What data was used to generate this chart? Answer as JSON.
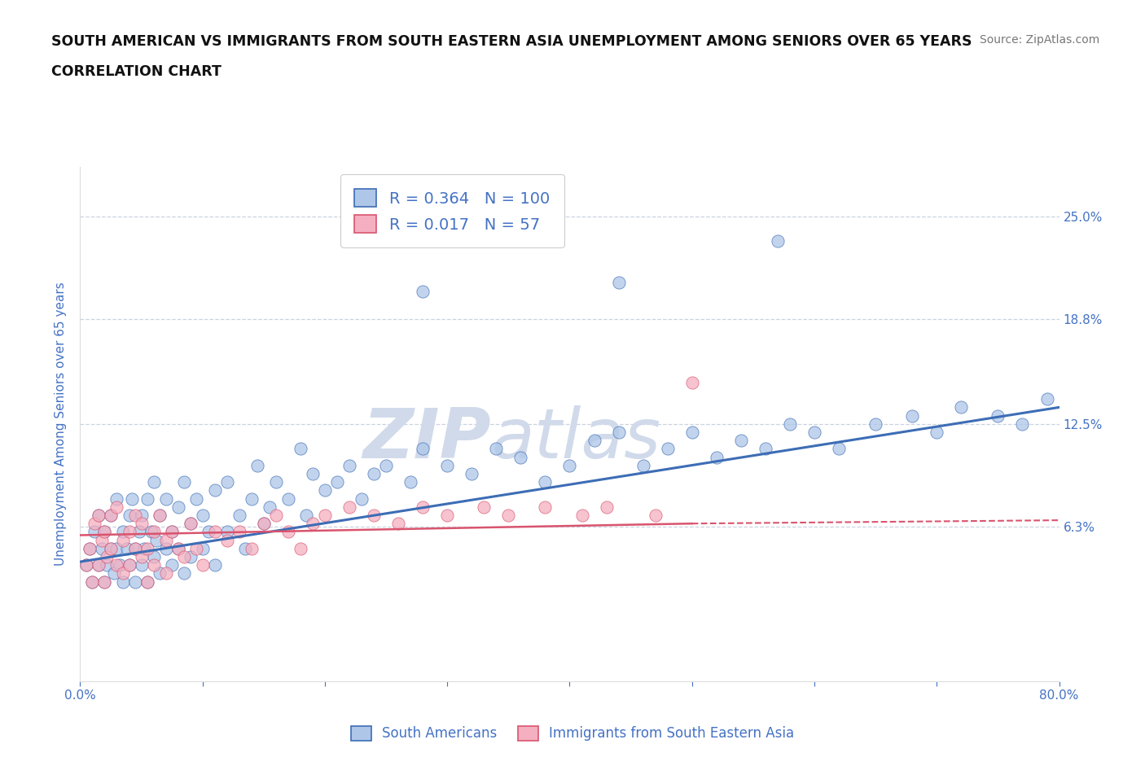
{
  "title_line1": "SOUTH AMERICAN VS IMMIGRANTS FROM SOUTH EASTERN ASIA UNEMPLOYMENT AMONG SENIORS OVER 65 YEARS",
  "title_line2": "CORRELATION CHART",
  "source": "Source: ZipAtlas.com",
  "ylabel": "Unemployment Among Seniors over 65 years",
  "xlim": [
    0.0,
    80.0
  ],
  "ylim": [
    -3.0,
    28.0
  ],
  "yticks": [
    6.3,
    12.5,
    18.8,
    25.0
  ],
  "ytick_labels": [
    "6.3%",
    "12.5%",
    "18.8%",
    "25.0%"
  ],
  "xticks": [
    0.0,
    10.0,
    20.0,
    30.0,
    40.0,
    50.0,
    60.0,
    70.0,
    80.0
  ],
  "blue_R": 0.364,
  "blue_N": 100,
  "pink_R": 0.017,
  "pink_N": 57,
  "blue_color": "#aec6e8",
  "pink_color": "#f4afc0",
  "blue_line_color": "#3d6db5",
  "pink_line_color": "#d9546e",
  "tick_color": "#4472c4",
  "grid_color": "#c0c8d8",
  "watermark_color": "#d0daea",
  "background_color": "#ffffff",
  "blue_scatter_x": [
    0.5,
    0.8,
    1.0,
    1.2,
    1.5,
    1.5,
    1.8,
    2.0,
    2.0,
    2.2,
    2.5,
    2.5,
    2.8,
    3.0,
    3.0,
    3.2,
    3.5,
    3.5,
    3.8,
    4.0,
    4.0,
    4.2,
    4.5,
    4.5,
    4.8,
    5.0,
    5.0,
    5.2,
    5.5,
    5.5,
    5.8,
    6.0,
    6.0,
    6.2,
    6.5,
    6.5,
    7.0,
    7.0,
    7.5,
    7.5,
    8.0,
    8.0,
    8.5,
    8.5,
    9.0,
    9.0,
    9.5,
    10.0,
    10.0,
    10.5,
    11.0,
    11.0,
    12.0,
    12.0,
    13.0,
    13.5,
    14.0,
    14.5,
    15.0,
    15.5,
    16.0,
    17.0,
    18.0,
    18.5,
    19.0,
    20.0,
    21.0,
    22.0,
    23.0,
    24.0,
    25.0,
    27.0,
    28.0,
    30.0,
    32.0,
    34.0,
    36.0,
    38.0,
    40.0,
    42.0,
    44.0,
    46.0,
    48.0,
    50.0,
    52.0,
    54.0,
    56.0,
    58.0,
    60.0,
    62.0,
    65.0,
    68.0,
    70.0,
    72.0,
    75.0,
    77.0,
    79.0,
    28.0,
    44.0,
    57.0
  ],
  "blue_scatter_y": [
    4.0,
    5.0,
    3.0,
    6.0,
    4.0,
    7.0,
    5.0,
    3.0,
    6.0,
    4.0,
    7.0,
    5.0,
    3.5,
    5.0,
    8.0,
    4.0,
    6.0,
    3.0,
    5.0,
    7.0,
    4.0,
    8.0,
    5.0,
    3.0,
    6.0,
    4.0,
    7.0,
    5.0,
    8.0,
    3.0,
    6.0,
    4.5,
    9.0,
    5.5,
    7.0,
    3.5,
    5.0,
    8.0,
    6.0,
    4.0,
    7.5,
    5.0,
    9.0,
    3.5,
    6.5,
    4.5,
    8.0,
    5.0,
    7.0,
    6.0,
    8.5,
    4.0,
    6.0,
    9.0,
    7.0,
    5.0,
    8.0,
    10.0,
    6.5,
    7.5,
    9.0,
    8.0,
    11.0,
    7.0,
    9.5,
    8.5,
    9.0,
    10.0,
    8.0,
    9.5,
    10.0,
    9.0,
    11.0,
    10.0,
    9.5,
    11.0,
    10.5,
    9.0,
    10.0,
    11.5,
    12.0,
    10.0,
    11.0,
    12.0,
    10.5,
    11.5,
    11.0,
    12.5,
    12.0,
    11.0,
    12.5,
    13.0,
    12.0,
    13.5,
    13.0,
    12.5,
    14.0,
    20.5,
    21.0,
    23.5
  ],
  "pink_scatter_x": [
    0.5,
    0.8,
    1.0,
    1.2,
    1.5,
    1.5,
    1.8,
    2.0,
    2.0,
    2.2,
    2.5,
    2.5,
    3.0,
    3.0,
    3.5,
    3.5,
    4.0,
    4.0,
    4.5,
    4.5,
    5.0,
    5.0,
    5.5,
    5.5,
    6.0,
    6.0,
    6.5,
    7.0,
    7.0,
    7.5,
    8.0,
    8.5,
    9.0,
    9.5,
    10.0,
    11.0,
    12.0,
    13.0,
    14.0,
    15.0,
    16.0,
    17.0,
    18.0,
    19.0,
    20.0,
    22.0,
    24.0,
    26.0,
    28.0,
    30.0,
    33.0,
    35.0,
    38.0,
    41.0,
    43.0,
    47.0,
    50.0
  ],
  "pink_scatter_y": [
    4.0,
    5.0,
    3.0,
    6.5,
    4.0,
    7.0,
    5.5,
    3.0,
    6.0,
    4.5,
    7.0,
    5.0,
    4.0,
    7.5,
    5.5,
    3.5,
    6.0,
    4.0,
    7.0,
    5.0,
    4.5,
    6.5,
    5.0,
    3.0,
    6.0,
    4.0,
    7.0,
    5.5,
    3.5,
    6.0,
    5.0,
    4.5,
    6.5,
    5.0,
    4.0,
    6.0,
    5.5,
    6.0,
    5.0,
    6.5,
    7.0,
    6.0,
    5.0,
    6.5,
    7.0,
    7.5,
    7.0,
    6.5,
    7.5,
    7.0,
    7.5,
    7.0,
    7.5,
    7.0,
    7.5,
    7.0,
    15.0
  ],
  "blue_line_x0": 0.0,
  "blue_line_x1": 80.0,
  "blue_line_y0": 4.2,
  "blue_line_y1": 13.5,
  "pink_line_x0": 0.0,
  "pink_line_x1": 50.0,
  "pink_line_y0": 5.8,
  "pink_line_y1": 6.5,
  "pink_dashed_x0": 50.0,
  "pink_dashed_x1": 80.0,
  "pink_dashed_y0": 6.5,
  "pink_dashed_y1": 6.7
}
